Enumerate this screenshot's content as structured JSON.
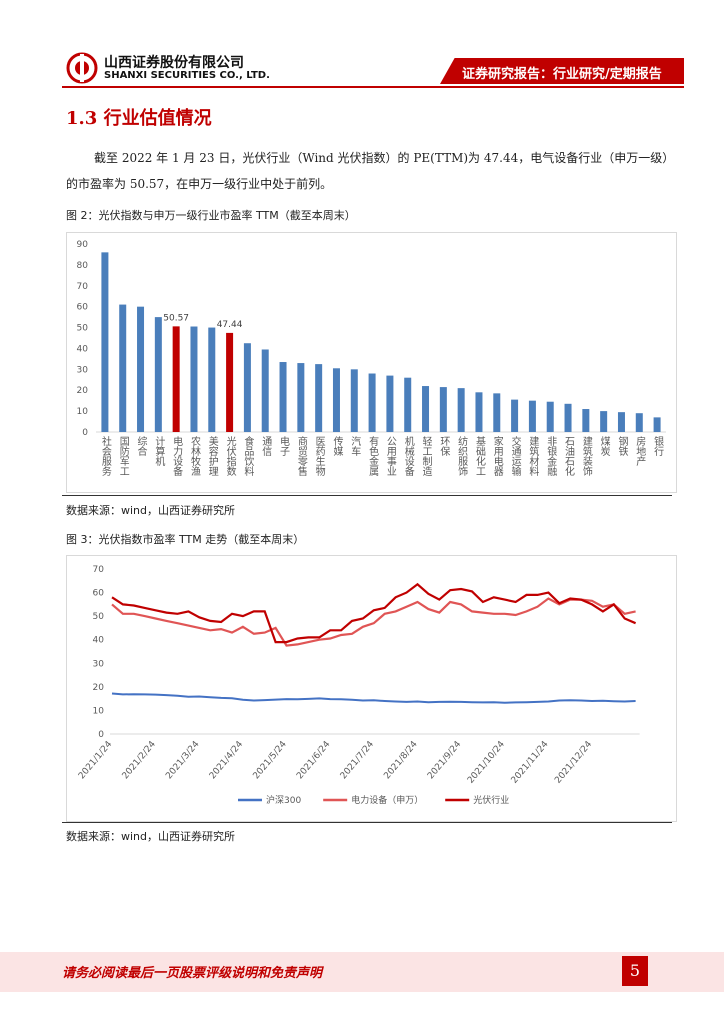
{
  "header": {
    "company": "山西证券股份有限公司",
    "company_en": "SHANXI SECURITIES CO., LTD.",
    "report_type": "证券研究报告：行业研究/定期报告"
  },
  "section_title": "1.3 行业估值情况",
  "paragraph": [
    "截至 2022 年 1 月 23 日，光伏行业（Wind 光伏指数）的 PE(TTM)为 47.44，电气设备行业（申万一级）",
    "的市盈率为 50.57，在申万一级行业中处于前列。"
  ],
  "figures": [
    {
      "caption": "图 2：光伏指数与申万一级行业市盈率 TTM（截至本周末）",
      "source": "数据来源：wind，山西证券研究所"
    },
    {
      "caption": "图 3：光伏指数市盈率 TTM 走势（截至本周末）",
      "source": "数据来源：wind，山西证券研究所"
    }
  ],
  "chart_data": [
    {
      "type": "bar",
      "categories": [
        "社会服务",
        "国防军工",
        "综合",
        "计算机",
        "电力设备",
        "农林牧渔",
        "美容护理",
        "光伏指数",
        "食品饮料",
        "通信",
        "电子",
        "商贸零售",
        "医药生物",
        "传媒",
        "汽车",
        "有色金属",
        "公用事业",
        "机械设备",
        "轻工制造",
        "环保",
        "纺织服饰",
        "基础化工",
        "家用电器",
        "交通运输",
        "建筑材料",
        "非银金融",
        "石油石化",
        "建筑装饰",
        "煤炭",
        "钢铁",
        "房地产",
        "银行"
      ],
      "values": [
        86,
        61,
        60,
        55,
        50.57,
        50.5,
        50,
        47.44,
        42.5,
        39.5,
        33.5,
        33,
        32.5,
        30.5,
        30,
        28,
        27,
        26,
        22,
        21.5,
        21,
        19,
        18.5,
        15.5,
        15,
        14.5,
        13.5,
        11,
        10,
        9.5,
        9,
        7
      ],
      "value_labels": [
        null,
        null,
        null,
        null,
        "50.57",
        null,
        null,
        "47.44",
        null,
        null,
        null,
        null,
        null,
        null,
        null,
        null,
        null,
        null,
        null,
        null,
        null,
        null,
        null,
        null,
        null,
        null,
        null,
        null,
        null,
        null,
        null,
        null
      ],
      "colors": [
        "#4a7ebb",
        "#4a7ebb",
        "#4a7ebb",
        "#4a7ebb",
        "#c00000",
        "#4a7ebb",
        "#4a7ebb",
        "#c00000",
        "#4a7ebb",
        "#4a7ebb",
        "#4a7ebb",
        "#4a7ebb",
        "#4a7ebb",
        "#4a7ebb",
        "#4a7ebb",
        "#4a7ebb",
        "#4a7ebb",
        "#4a7ebb",
        "#4a7ebb",
        "#4a7ebb",
        "#4a7ebb",
        "#4a7ebb",
        "#4a7ebb",
        "#4a7ebb",
        "#4a7ebb",
        "#4a7ebb",
        "#4a7ebb",
        "#4a7ebb",
        "#4a7ebb",
        "#4a7ebb",
        "#4a7ebb",
        "#4a7ebb"
      ],
      "ylim": [
        0,
        90
      ],
      "yticks": [
        0,
        10,
        20,
        30,
        40,
        50,
        60,
        70,
        80,
        90
      ],
      "grid": false
    },
    {
      "type": "line",
      "categories": [
        "2021/1/24",
        null,
        null,
        null,
        "2021/2/24",
        null,
        null,
        null,
        "2021/3/24",
        null,
        null,
        null,
        "2021/4/24",
        null,
        null,
        null,
        "2021/5/24",
        null,
        null,
        null,
        "2021/6/24",
        null,
        null,
        null,
        "2021/7/24",
        null,
        null,
        null,
        "2021/8/24",
        null,
        null,
        null,
        "2021/9/24",
        null,
        null,
        null,
        "2021/10/24",
        null,
        null,
        null,
        "2021/11/24",
        null,
        null,
        null,
        "2021/12/24",
        null,
        null,
        null,
        null
      ],
      "series": [
        {
          "name": "沪深300",
          "color": "#4472c4",
          "values": [
            17.2,
            16.8,
            16.9,
            16.8,
            16.7,
            16.5,
            16.2,
            15.8,
            15.9,
            15.6,
            15.3,
            15.2,
            14.5,
            14.2,
            14.4,
            14.6,
            14.8,
            14.7,
            14.9,
            15.1,
            14.8,
            14.7,
            14.5,
            14.2,
            14.3,
            14.0,
            13.8,
            13.6,
            13.8,
            13.5,
            13.6,
            13.7,
            13.6,
            13.5,
            13.4,
            13.5,
            13.3,
            13.4,
            13.5,
            13.6,
            13.8,
            14.2,
            14.3,
            14.2,
            14.0,
            14.1,
            13.9,
            13.8,
            14.0
          ]
        },
        {
          "name": "电力设备（申万）",
          "color": "#e05555",
          "values": [
            55,
            51,
            51,
            50,
            49,
            48,
            47,
            46,
            45,
            44,
            44.5,
            43,
            45.5,
            42.5,
            43,
            45,
            37.5,
            38,
            39,
            40,
            40.5,
            42,
            42.5,
            45.5,
            47,
            51,
            52,
            54,
            56,
            53,
            51.5,
            56,
            55,
            52,
            51.5,
            51,
            51,
            50.5,
            52,
            54,
            57.5,
            55,
            57,
            57,
            56.5,
            54,
            55,
            51,
            52
          ]
        },
        {
          "name": "光伏行业",
          "color": "#c00000",
          "values": [
            58,
            55,
            54.5,
            53.5,
            52.5,
            51.5,
            51,
            52,
            49.5,
            48,
            47.5,
            51,
            50,
            52,
            52,
            39,
            39,
            40.5,
            41,
            41,
            44,
            44,
            48,
            49,
            52.5,
            53.5,
            58,
            60,
            63.5,
            59.5,
            57,
            61,
            61.5,
            60.5,
            56,
            58,
            57,
            56,
            59,
            59,
            60,
            55.5,
            57.5,
            57,
            55,
            52,
            55,
            49,
            47
          ]
        }
      ],
      "ylim": [
        0,
        70
      ],
      "yticks": [
        0,
        10,
        20,
        30,
        40,
        50,
        60,
        70
      ],
      "grid": false,
      "legend": "bottom"
    }
  ],
  "footer": {
    "notice": "请务必阅读最后一页股票评级说明和免责声明",
    "page": "5"
  }
}
